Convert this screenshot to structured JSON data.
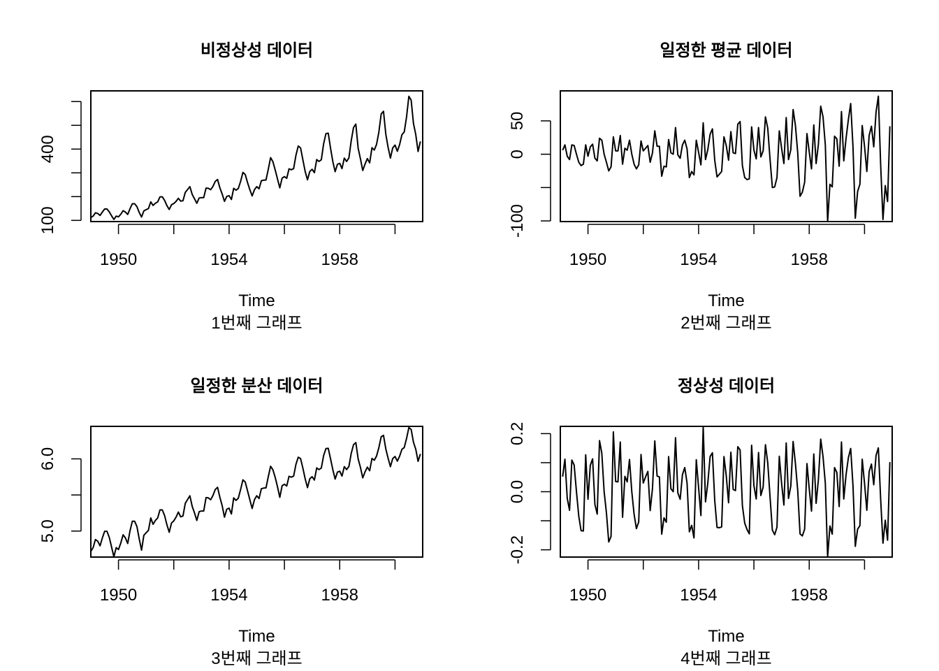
{
  "chart_data": [
    {
      "type": "line",
      "title": "비정상성 데이터",
      "xlabel": "Time",
      "sub": "1번째 그래프",
      "xlim": [
        1949,
        1961
      ],
      "xticks": [
        1950,
        1952,
        1954,
        1956,
        1958,
        1960
      ],
      "xtick_labels": [
        "1950",
        "",
        "1954",
        "",
        "1958",
        ""
      ],
      "ylim": [
        95,
        645
      ],
      "yticks": [
        100,
        200,
        300,
        400,
        500,
        600
      ],
      "ytick_labels": [
        "100",
        "",
        "",
        "400",
        "",
        ""
      ],
      "series": [
        {
          "start": 1949,
          "frequency": 12,
          "values": [
            112,
            118,
            132,
            129,
            121,
            135,
            148,
            148,
            136,
            119,
            104,
            118,
            115,
            126,
            141,
            135,
            125,
            149,
            170,
            170,
            158,
            133,
            114,
            140,
            145,
            150,
            178,
            163,
            172,
            178,
            199,
            199,
            184,
            162,
            146,
            166,
            171,
            180,
            193,
            181,
            183,
            218,
            230,
            242,
            209,
            191,
            172,
            194,
            196,
            196,
            236,
            235,
            229,
            243,
            264,
            272,
            237,
            211,
            180,
            201,
            204,
            188,
            235,
            227,
            234,
            264,
            302,
            293,
            259,
            229,
            203,
            229,
            242,
            233,
            267,
            269,
            270,
            315,
            364,
            347,
            312,
            274,
            237,
            278,
            284,
            277,
            317,
            313,
            318,
            374,
            413,
            405,
            355,
            306,
            271,
            306,
            315,
            301,
            356,
            348,
            355,
            422,
            465,
            467,
            404,
            347,
            305,
            336,
            340,
            318,
            362,
            348,
            363,
            435,
            491,
            505,
            404,
            359,
            310,
            337,
            360,
            342,
            406,
            396,
            420,
            472,
            548,
            559,
            463,
            407,
            362,
            405,
            417,
            391,
            419,
            461,
            472,
            535,
            622,
            606,
            508,
            461,
            390,
            432
          ]
        }
      ]
    },
    {
      "type": "line",
      "title": "일정한 평균 데이터",
      "xlabel": "Time",
      "sub": "2번째 그래프",
      "xlim": [
        1949,
        1961
      ],
      "xticks": [
        1950,
        1952,
        1954,
        1956,
        1958,
        1960
      ],
      "xtick_labels": [
        "1950",
        "",
        "1954",
        "",
        "1958",
        ""
      ],
      "ylim": [
        -101,
        95
      ],
      "yticks": [
        -100,
        -50,
        0,
        50
      ],
      "ytick_labels": [
        "-100",
        "",
        "0",
        "50"
      ],
      "series": [
        {
          "start": 1949.0833,
          "frequency": 12,
          "values": [
            6,
            14,
            -3,
            -8,
            14,
            13,
            0,
            -12,
            -17,
            -15,
            14,
            -3,
            11,
            15,
            -6,
            -10,
            24,
            21,
            0,
            -12,
            -25,
            -19,
            26,
            5,
            5,
            28,
            -15,
            9,
            6,
            21,
            0,
            -15,
            -22,
            -16,
            20,
            5,
            9,
            13,
            -12,
            2,
            35,
            12,
            12,
            -33,
            -18,
            -19,
            22,
            2,
            0,
            40,
            -1,
            -6,
            14,
            21,
            8,
            -35,
            -26,
            -31,
            21,
            3,
            -16,
            47,
            -8,
            7,
            30,
            38,
            -9,
            -34,
            -30,
            -26,
            26,
            13,
            -9,
            34,
            2,
            1,
            45,
            49,
            -17,
            -35,
            -38,
            -37,
            41,
            6,
            -7,
            40,
            -4,
            5,
            56,
            39,
            -8,
            -50,
            -49,
            -35,
            35,
            9,
            -14,
            55,
            -8,
            7,
            67,
            43,
            2,
            -63,
            -57,
            -42,
            31,
            4,
            -22,
            44,
            -14,
            15,
            72,
            56,
            14,
            -101,
            -45,
            -49,
            27,
            23,
            -18,
            64,
            -10,
            24,
            52,
            76,
            11,
            -96,
            -56,
            -45,
            43,
            12,
            -26,
            28,
            42,
            11,
            63,
            87,
            -16,
            -98,
            -47,
            -71,
            42
          ]
        }
      ]
    },
    {
      "type": "line",
      "title": "일정한 분산 데이터",
      "xlabel": "Time",
      "sub": "3번째 그래프",
      "xlim": [
        1949,
        1961
      ],
      "xticks": [
        1950,
        1952,
        1954,
        1956,
        1958,
        1960
      ],
      "xtick_labels": [
        "1950",
        "",
        "1954",
        "",
        "1958",
        ""
      ],
      "ylim": [
        4.64,
        6.45
      ],
      "yticks": [
        4.5,
        5.0,
        5.5,
        6.0,
        6.5
      ],
      "ytick_labels": [
        "",
        "5.0",
        "",
        "6.0",
        ""
      ],
      "series": [
        {
          "start": 1949,
          "frequency": 12,
          "values": [
            4.718,
            4.771,
            4.883,
            4.86,
            4.796,
            4.905,
            4.997,
            4.997,
            4.913,
            4.779,
            4.644,
            4.771,
            4.745,
            4.836,
            4.949,
            4.905,
            4.828,
            5.004,
            5.136,
            5.136,
            5.063,
            4.89,
            4.736,
            4.942,
            4.977,
            5.011,
            5.182,
            5.094,
            5.147,
            5.182,
            5.293,
            5.293,
            5.215,
            5.088,
            4.984,
            5.112,
            5.142,
            5.193,
            5.263,
            5.198,
            5.209,
            5.384,
            5.438,
            5.489,
            5.342,
            5.252,
            5.147,
            5.268,
            5.278,
            5.278,
            5.464,
            5.46,
            5.434,
            5.493,
            5.576,
            5.606,
            5.468,
            5.352,
            5.193,
            5.303,
            5.318,
            5.236,
            5.46,
            5.425,
            5.455,
            5.576,
            5.71,
            5.68,
            5.557,
            5.434,
            5.313,
            5.434,
            5.489,
            5.451,
            5.587,
            5.595,
            5.598,
            5.753,
            5.897,
            5.849,
            5.743,
            5.613,
            5.468,
            5.628,
            5.649,
            5.624,
            5.759,
            5.746,
            5.762,
            5.924,
            6.023,
            6.004,
            5.872,
            5.724,
            5.602,
            5.724,
            5.753,
            5.707,
            5.875,
            5.852,
            5.872,
            6.045,
            6.142,
            6.146,
            6.001,
            5.849,
            5.72,
            5.817,
            5.829,
            5.762,
            5.892,
            5.852,
            5.894,
            6.075,
            6.196,
            6.225,
            6.001,
            5.883,
            5.737,
            5.82,
            5.886,
            5.835,
            6.006,
            5.981,
            6.04,
            6.157,
            6.306,
            6.326,
            6.138,
            6.009,
            5.892,
            6.004,
            6.033,
            5.969,
            6.038,
            6.133,
            6.157,
            6.282,
            6.433,
            6.407,
            6.23,
            6.133,
            5.966,
            6.068
          ]
        }
      ]
    },
    {
      "type": "line",
      "title": "정상성 데이터",
      "xlabel": "Time",
      "sub": "4번째 그래프",
      "xlim": [
        1949,
        1961
      ],
      "xticks": [
        1950,
        1952,
        1954,
        1956,
        1958,
        1960
      ],
      "xtick_labels": [
        "1950",
        "",
        "1954",
        "",
        "1958",
        ""
      ],
      "ylim": [
        -0.225,
        0.225
      ],
      "yticks": [
        -0.2,
        -0.1,
        0.0,
        0.1,
        0.2
      ],
      "ytick_labels": [
        "-0.2",
        "",
        "0.0",
        "",
        "0.2"
      ],
      "series": [
        {
          "start": 1949.0833,
          "frequency": 12,
          "values": [
            0.052,
            0.112,
            -0.023,
            -0.064,
            0.109,
            0.092,
            0.0,
            -0.084,
            -0.134,
            -0.135,
            0.127,
            -0.026,
            0.091,
            0.113,
            -0.044,
            -0.077,
            0.176,
            0.132,
            0.0,
            -0.073,
            -0.173,
            -0.154,
            0.206,
            0.035,
            0.034,
            0.171,
            -0.088,
            0.053,
            0.034,
            0.111,
            0.0,
            -0.078,
            -0.127,
            -0.104,
            0.128,
            0.03,
            0.051,
            0.07,
            -0.065,
            0.011,
            0.175,
            0.054,
            0.051,
            -0.146,
            -0.09,
            -0.105,
            0.121,
            0.01,
            0.0,
            0.186,
            -0.004,
            -0.026,
            0.059,
            0.083,
            0.03,
            -0.138,
            -0.116,
            -0.159,
            0.11,
            0.015,
            -0.082,
            0.224,
            -0.035,
            0.03,
            0.121,
            0.134,
            -0.03,
            -0.123,
            -0.124,
            -0.121,
            0.121,
            0.055,
            -0.038,
            0.136,
            0.008,
            0.004,
            0.155,
            0.144,
            -0.048,
            -0.108,
            -0.13,
            -0.145,
            0.16,
            0.021,
            -0.025,
            0.135,
            -0.013,
            0.016,
            0.162,
            0.099,
            -0.019,
            -0.132,
            -0.148,
            -0.122,
            0.122,
            0.029,
            -0.046,
            0.168,
            -0.023,
            0.02,
            0.173,
            0.097,
            0.004,
            -0.145,
            -0.152,
            -0.129,
            0.097,
            0.012,
            -0.067,
            0.13,
            -0.04,
            0.042,
            0.181,
            0.121,
            0.029,
            -0.224,
            -0.118,
            -0.146,
            0.083,
            0.066,
            -0.051,
            0.171,
            -0.025,
            0.059,
            0.117,
            0.149,
            0.02,
            -0.188,
            -0.129,
            -0.117,
            0.112,
            0.029,
            -0.064,
            0.069,
            0.095,
            0.024,
            0.125,
            0.151,
            -0.026,
            -0.177,
            -0.098,
            -0.167,
            0.102
          ]
        }
      ]
    }
  ]
}
